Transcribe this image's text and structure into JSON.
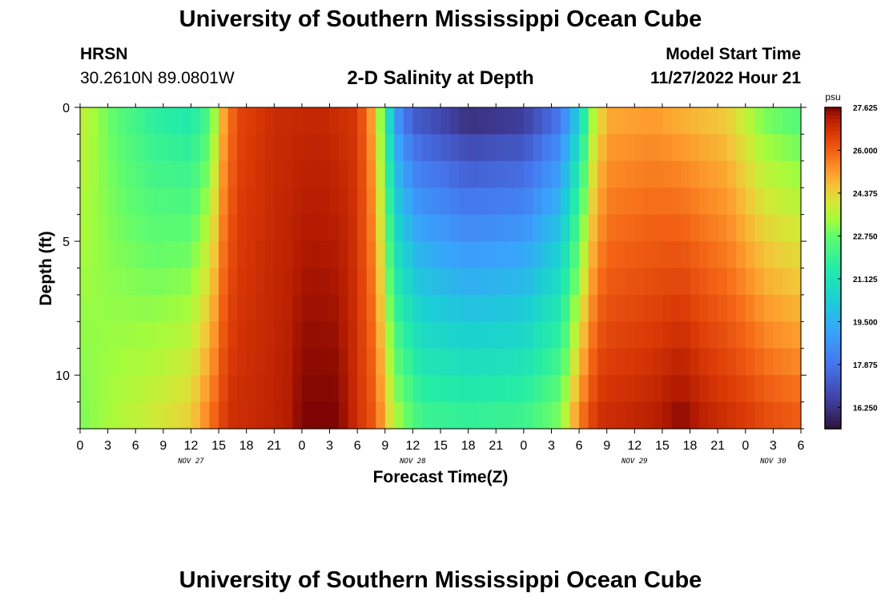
{
  "header": {
    "title": "University of Southern Mississippi Ocean Cube",
    "station": "HRSN",
    "coords": "30.2610N  89.0801W",
    "subtitle": "2-D Salinity at Depth",
    "model_start_label": "Model Start Time",
    "model_start_value": "11/27/2022 Hour 21"
  },
  "footer": {
    "title": "University of Southern Mississippi Ocean Cube"
  },
  "chart_data": {
    "type": "heatmap",
    "title": "2-D Salinity at Depth",
    "xlabel": "Forecast Time(Z)",
    "ylabel": "Depth (ft)",
    "x_start_hour": 0,
    "x_end_hour": 78,
    "x_tick_step_hours": 3,
    "x_tick_labels": [
      "0",
      "3",
      "6",
      "9",
      "12",
      "15",
      "18",
      "21",
      "0",
      "3",
      "6",
      "9",
      "12",
      "15",
      "18",
      "21",
      "0",
      "3",
      "6",
      "9",
      "12",
      "15",
      "18",
      "21",
      "0",
      "3",
      "6"
    ],
    "day_labels": [
      {
        "label": "NOV 27",
        "hour": 12
      },
      {
        "label": "NOV 28",
        "hour": 36
      },
      {
        "label": "NOV 29",
        "hour": 60
      },
      {
        "label": "NOV 30",
        "hour": 75
      }
    ],
    "y_range": [
      0,
      12
    ],
    "y_ticks": [
      0,
      5,
      10
    ],
    "y_tick_labels": [
      "0",
      "5",
      "10"
    ],
    "depth_levels": 12,
    "colorbar": {
      "unit": "psu",
      "min": 15.44,
      "max": 27.625,
      "tick_values": [
        16.25,
        17.875,
        19.5,
        21.125,
        22.75,
        24.375,
        26.0,
        27.625
      ],
      "tick_labels": [
        "16.250",
        "17.875",
        "19.500",
        "21.125",
        "22.750",
        "24.375",
        "26.000",
        "27.625"
      ]
    },
    "surface_salinity_profile": [
      {
        "hour": 0,
        "value": 23.8
      },
      {
        "hour": 4,
        "value": 22.6
      },
      {
        "hour": 8,
        "value": 21.7
      },
      {
        "hour": 12,
        "value": 21.4
      },
      {
        "hour": 14,
        "value": 22.4
      },
      {
        "hour": 15.5,
        "value": 25.0
      },
      {
        "hour": 17,
        "value": 26.4
      },
      {
        "hour": 21,
        "value": 26.9
      },
      {
        "hour": 26,
        "value": 27.0
      },
      {
        "hour": 30,
        "value": 26.7
      },
      {
        "hour": 31.5,
        "value": 25.2
      },
      {
        "hour": 33,
        "value": 22.3
      },
      {
        "hour": 34,
        "value": 19.0
      },
      {
        "hour": 36,
        "value": 17.3
      },
      {
        "hour": 42,
        "value": 16.2
      },
      {
        "hour": 48,
        "value": 16.5
      },
      {
        "hour": 52,
        "value": 18.0
      },
      {
        "hour": 54,
        "value": 20.5
      },
      {
        "hour": 55.5,
        "value": 23.5
      },
      {
        "hour": 57,
        "value": 25.0
      },
      {
        "hour": 62,
        "value": 25.2
      },
      {
        "hour": 70,
        "value": 24.5
      },
      {
        "hour": 74,
        "value": 23.0
      },
      {
        "hour": 78,
        "value": 22.5
      }
    ],
    "bottom_salinity_profile": [
      {
        "hour": 0,
        "value": 23.0
      },
      {
        "hour": 4,
        "value": 23.5
      },
      {
        "hour": 8,
        "value": 23.9
      },
      {
        "hour": 12,
        "value": 24.4
      },
      {
        "hour": 14,
        "value": 25.6
      },
      {
        "hour": 16,
        "value": 26.8
      },
      {
        "hour": 20,
        "value": 27.0
      },
      {
        "hour": 22.5,
        "value": 27.2
      },
      {
        "hour": 24,
        "value": 27.6
      },
      {
        "hour": 28,
        "value": 27.6
      },
      {
        "hour": 32,
        "value": 26.0
      },
      {
        "hour": 34,
        "value": 23.5
      },
      {
        "hour": 37,
        "value": 22.0
      },
      {
        "hour": 42,
        "value": 21.8
      },
      {
        "hour": 48,
        "value": 22.0
      },
      {
        "hour": 52,
        "value": 23.0
      },
      {
        "hour": 54,
        "value": 25.5
      },
      {
        "hour": 56,
        "value": 26.8
      },
      {
        "hour": 62,
        "value": 27.1
      },
      {
        "hour": 65,
        "value": 27.5
      },
      {
        "hour": 68,
        "value": 27.0
      },
      {
        "hour": 72,
        "value": 26.6
      },
      {
        "hour": 75,
        "value": 26.2
      },
      {
        "hour": 78,
        "value": 26.0
      }
    ]
  }
}
